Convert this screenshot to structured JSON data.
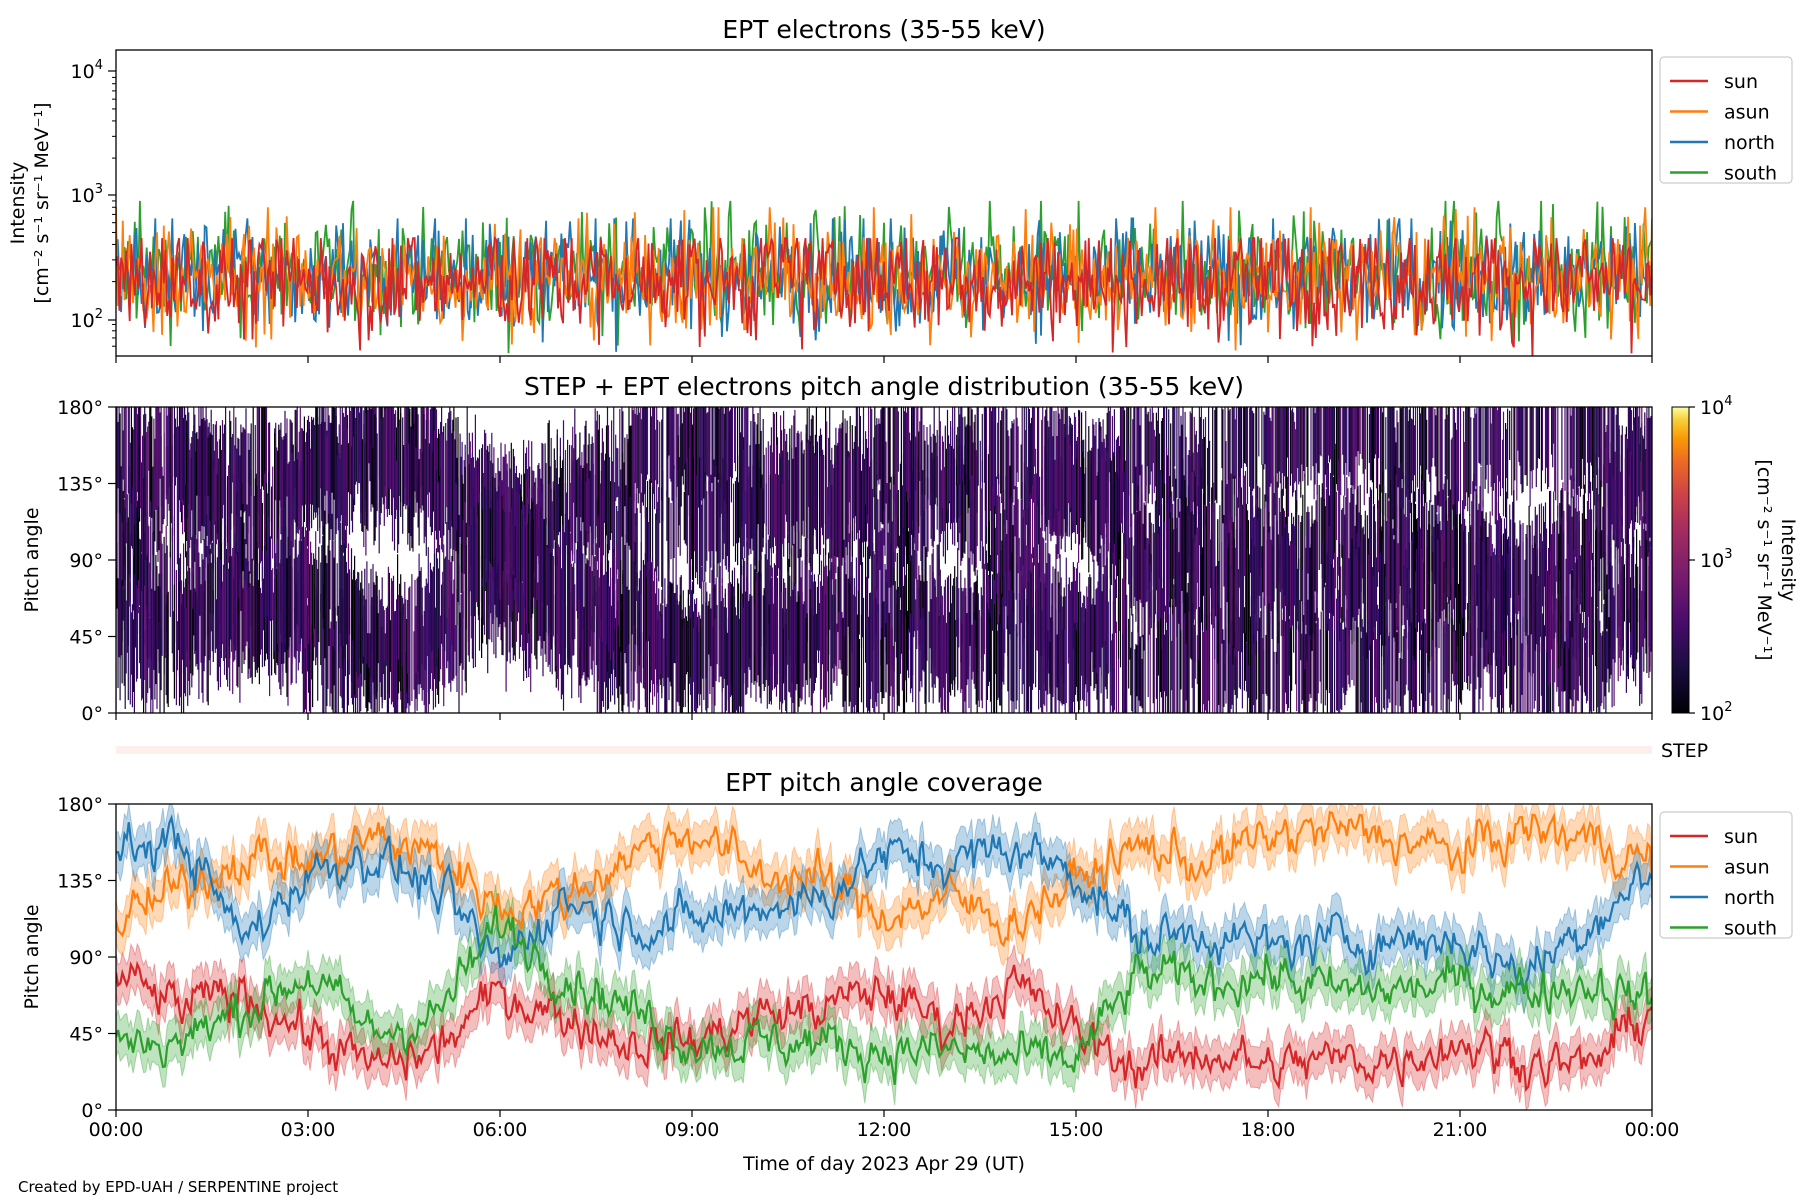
{
  "footer": {
    "credit": "Created by EPD-UAH / SERPENTINE project"
  },
  "colors": {
    "sun": "#d62728",
    "asun": "#ff7f0e",
    "north": "#1f77b4",
    "south": "#2ca02c"
  },
  "chart_data": [
    {
      "type": "line",
      "title": "EPT electrons (35-55 keV)",
      "xlabel": "",
      "ylabel": "Intensity",
      "ylabel_units": "[cm⁻² s⁻¹ sr⁻¹ MeV⁻¹]",
      "yscale": "log",
      "ylim": [
        50,
        15000
      ],
      "yticks": [
        "10²",
        "10³",
        "10⁴"
      ],
      "x_range_hours": [
        0,
        24
      ],
      "legend": {
        "placement": "outside-right",
        "entries": [
          "sun",
          "asun",
          "north",
          "south"
        ]
      },
      "series": [
        {
          "name": "sun",
          "typical_range": [
            60,
            450
          ],
          "median": 200
        },
        {
          "name": "asun",
          "typical_range": [
            60,
            800
          ],
          "median": 210
        },
        {
          "name": "north",
          "typical_range": [
            60,
            650
          ],
          "median": 220
        },
        {
          "name": "south",
          "typical_range": [
            60,
            900
          ],
          "median": 230
        }
      ],
      "note": "noisy high-cadence time series; values fluctuate between about 60 and 900"
    },
    {
      "type": "heatmap",
      "title": "STEP + EPT electrons pitch angle distribution (35-55 keV)",
      "ylabel": "Pitch angle",
      "ylim": [
        0,
        180
      ],
      "yticks": [
        "0°",
        "45°",
        "90°",
        "135°",
        "180°"
      ],
      "colorbar": {
        "label": "Intensity",
        "units": "[cm⁻² s⁻¹ sr⁻¹ MeV⁻¹]",
        "scale": "log",
        "range": [
          100,
          10000
        ],
        "ticks": [
          "10²",
          "10³",
          "10⁴"
        ],
        "colormap": "inferno"
      },
      "typical_intensity": [
        100,
        300
      ]
    },
    {
      "type": "heatmap",
      "label": "STEP",
      "note": "thin STEP coverage strip, nearly empty"
    },
    {
      "type": "line",
      "title": "EPT pitch angle coverage",
      "xlabel": "Time of day 2023 Apr 29 (UT)",
      "ylabel": "Pitch angle",
      "ylim": [
        0,
        180
      ],
      "yticks": [
        "0°",
        "45°",
        "90°",
        "135°",
        "180°"
      ],
      "xticks": [
        "00:00",
        "03:00",
        "06:00",
        "09:00",
        "12:00",
        "15:00",
        "18:00",
        "21:00",
        "00:00"
      ],
      "legend": {
        "placement": "outside-right",
        "entries": [
          "sun",
          "asun",
          "north",
          "south"
        ]
      },
      "band": "shaded min-max range around each series",
      "x_hours": [
        0,
        1,
        2,
        3,
        4,
        5,
        6,
        7,
        8,
        9,
        10,
        11,
        12,
        13,
        14,
        15,
        16,
        17,
        18,
        19,
        20,
        21,
        22,
        23,
        24
      ],
      "series": [
        {
          "name": "sun",
          "values": [
            80,
            60,
            70,
            45,
            25,
            35,
            70,
            55,
            40,
            40,
            55,
            60,
            70,
            50,
            75,
            45,
            25,
            35,
            25,
            30,
            30,
            40,
            30,
            25,
            60
          ]
        },
        {
          "name": "asun",
          "values": [
            110,
            130,
            150,
            145,
            160,
            150,
            120,
            125,
            150,
            165,
            140,
            135,
            115,
            125,
            110,
            135,
            155,
            145,
            160,
            165,
            160,
            150,
            165,
            160,
            145
          ]
        },
        {
          "name": "north",
          "values": [
            150,
            160,
            100,
            140,
            150,
            130,
            85,
            125,
            110,
            110,
            120,
            125,
            150,
            145,
            155,
            140,
            100,
            105,
            95,
            100,
            100,
            100,
            80,
            110,
            140
          ]
        },
        {
          "name": "south",
          "values": [
            40,
            40,
            60,
            80,
            45,
            55,
            110,
            80,
            60,
            40,
            40,
            40,
            35,
            35,
            30,
            30,
            80,
            75,
            80,
            70,
            70,
            75,
            70,
            75,
            65
          ]
        }
      ]
    }
  ]
}
